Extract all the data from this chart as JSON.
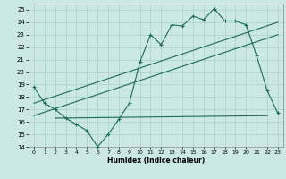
{
  "xlabel": "Humidex (Indice chaleur)",
  "xlim": [
    -0.5,
    23.5
  ],
  "ylim": [
    14,
    25.5
  ],
  "xticks": [
    0,
    1,
    2,
    3,
    4,
    5,
    6,
    7,
    8,
    9,
    10,
    11,
    12,
    13,
    14,
    15,
    16,
    17,
    18,
    19,
    20,
    21,
    22,
    23
  ],
  "yticks": [
    14,
    15,
    16,
    17,
    18,
    19,
    20,
    21,
    22,
    23,
    24,
    25
  ],
  "color": "#1a6b5a",
  "bg_color": "#cce8e4",
  "grid_color": "#aacfcb",
  "line1_x": [
    0,
    1,
    2,
    3,
    4,
    5,
    6,
    7,
    8,
    9,
    10,
    11,
    12,
    13,
    14,
    15,
    16,
    17,
    18,
    19,
    20,
    21,
    22,
    23
  ],
  "line1_y": [
    18.8,
    17.5,
    17.0,
    16.3,
    15.8,
    15.3,
    14.0,
    15.0,
    16.2,
    17.5,
    20.8,
    23.0,
    22.2,
    23.8,
    23.7,
    24.5,
    24.2,
    25.1,
    24.1,
    24.1,
    23.8,
    21.3,
    18.5,
    16.7
  ],
  "line2_x": [
    0,
    23
  ],
  "line2_y": [
    16.5,
    23.0
  ],
  "line3_x": [
    0,
    23
  ],
  "line3_y": [
    17.5,
    24.0
  ],
  "flat_line_x": [
    2,
    22
  ],
  "flat_line_y": [
    16.3,
    16.5
  ]
}
